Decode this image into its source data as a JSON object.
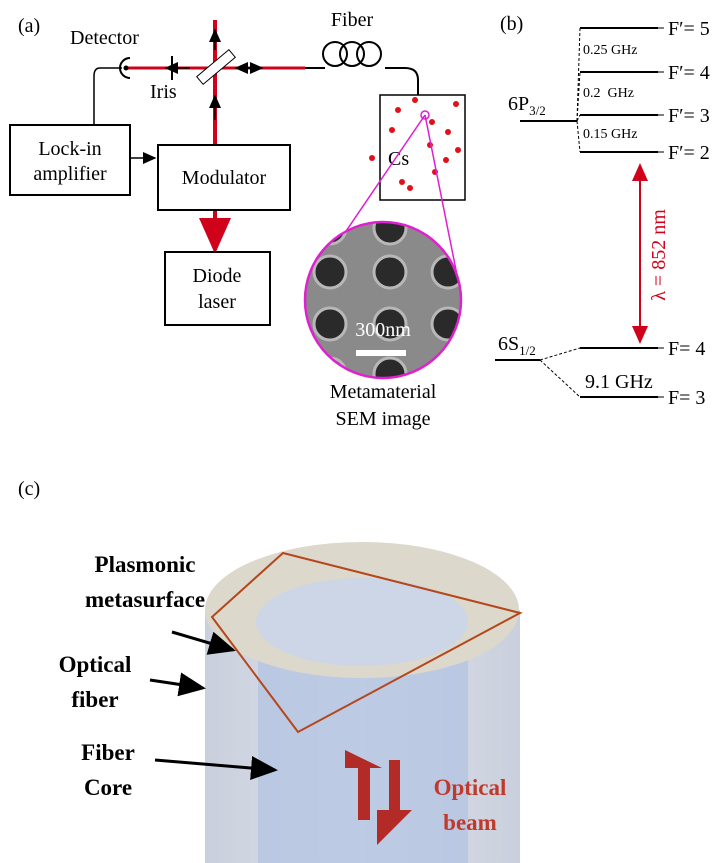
{
  "panel_a": {
    "label": "(a)",
    "detector": "Detector",
    "fiber": "Fiber",
    "iris": "Iris",
    "lockin": [
      "Lock-in",
      "amplifier"
    ],
    "modulator": "Modulator",
    "cs": "Cs",
    "diode": [
      "Diode",
      "laser"
    ],
    "scale": "300nm",
    "sem_caption": [
      "Metamaterial",
      "SEM image"
    ]
  },
  "panel_b": {
    "label": "(b)",
    "upper_levels": [
      "F′= 5",
      "F′= 4",
      "F′= 3",
      "F′= 2"
    ],
    "splittings": [
      "0.25 GHz",
      "0.2  GHz",
      "0.15 GHz"
    ],
    "excited_state": {
      "main": "6P",
      "sub": "3/2"
    },
    "wavelength": "λ = 852 nm",
    "lower_levels": [
      "F= 4",
      "F= 3"
    ],
    "ground_state": {
      "main": "6S",
      "sub": "1/2"
    },
    "ground_splitting": "9.1 GHz"
  },
  "panel_c": {
    "label": "(c)",
    "metasurface": [
      "Plasmonic",
      "metasurface"
    ],
    "fiber": [
      "Optical",
      "fiber"
    ],
    "core": [
      "Fiber",
      "Core"
    ],
    "beam": [
      "Optical",
      "beam"
    ]
  }
}
